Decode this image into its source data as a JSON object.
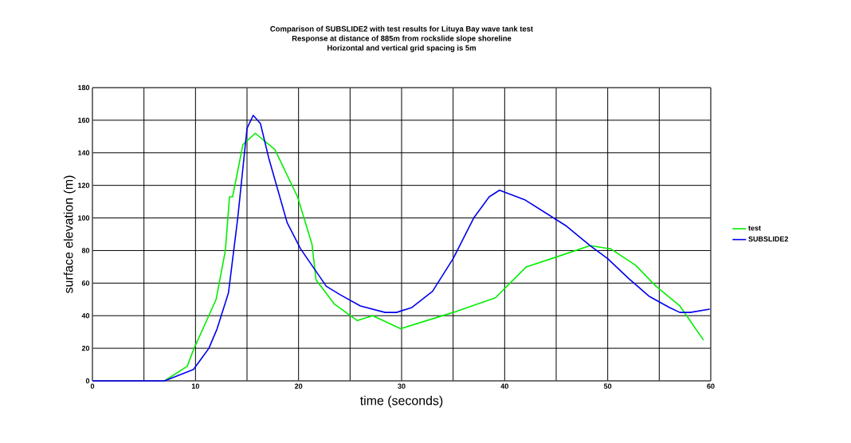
{
  "chart_data": {
    "type": "line",
    "title": "Comparison of SUBSLIDE2 with test results for Lituya Bay wave tank test",
    "subtitle": "Response at distance of 885m from rockslide slope shoreline",
    "annotations": [
      "Horizontal and vertical grid spacing is 5m"
    ],
    "xlabel": "time (seconds)",
    "ylabel": "surface elevation (m)",
    "xlim": [
      0,
      60
    ],
    "ylim": [
      0,
      180
    ],
    "xticks": [
      0,
      {
        "value": 5,
        "label": null
      },
      10,
      {
        "value": 15,
        "label": null
      },
      20,
      {
        "value": 25,
        "label": null
      },
      30,
      {
        "value": 35,
        "label": null
      },
      40,
      {
        "value": 45,
        "label": null
      },
      50,
      {
        "value": 55,
        "label": null
      },
      60
    ],
    "yticks": [
      0,
      20,
      40,
      60,
      80,
      100,
      120,
      140,
      160,
      180
    ],
    "grid": true,
    "legend": "right",
    "series": [
      {
        "name": "test",
        "color": "#00ee00",
        "x": [
          7,
          9.2,
          9.8,
          12,
          12.9,
          13.3,
          13.6,
          14.6,
          15.8,
          17.7,
          19.9,
          21.3,
          21.7,
          23.5,
          25.7,
          27.2,
          29.9,
          35,
          39.1,
          42.1,
          45,
          48.3,
          50.3,
          52.7,
          54.7,
          57,
          59.3
        ],
        "values": [
          0,
          9,
          19,
          50,
          80,
          113,
          113,
          145,
          152,
          142,
          113,
          84,
          62,
          47,
          37,
          40,
          32,
          42,
          51,
          70,
          76,
          83,
          81,
          71,
          58,
          46,
          25
        ]
      },
      {
        "name": "SUBSLIDE2",
        "color": "#0000ee",
        "x": [
          0,
          7,
          9.8,
          11.3,
          12.1,
          13.2,
          14.1,
          15,
          15.6,
          16.3,
          17.1,
          18.9,
          20.2,
          22.7,
          24,
          26,
          28.4,
          29.5,
          31,
          33,
          35,
          37,
          38.5,
          39.5,
          42,
          44,
          46,
          48.3,
          50,
          52,
          54,
          56,
          57,
          58,
          59.9
        ],
        "values": [
          0,
          0,
          7,
          20,
          32,
          54,
          100,
          155,
          163,
          158,
          137,
          97,
          81,
          58,
          53,
          46,
          42,
          42,
          45,
          55,
          75,
          100,
          113,
          117,
          111,
          103,
          95,
          83,
          75,
          63,
          52,
          45,
          42,
          42,
          44
        ]
      }
    ]
  }
}
